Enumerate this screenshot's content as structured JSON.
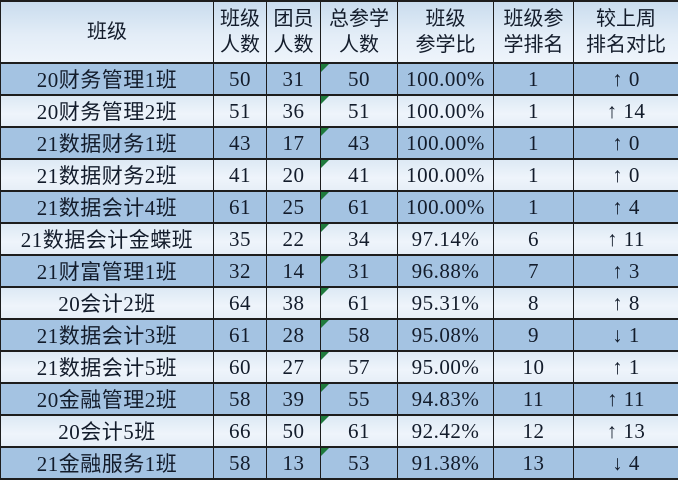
{
  "table": {
    "columns": [
      {
        "label": "班级"
      },
      {
        "label": "班级\n人数"
      },
      {
        "label": "团员\n人数"
      },
      {
        "label": "总参学\n人数"
      },
      {
        "label": "班级\n参学比"
      },
      {
        "label": "班级参\n学排名"
      },
      {
        "label": "较上周\n排名对比"
      }
    ],
    "fields": [
      "name",
      "size",
      "members",
      "attended",
      "ratio",
      "rank",
      "trend"
    ],
    "rows": [
      {
        "name": "20财务管理1班",
        "size": "50",
        "members": "31",
        "attended": "50",
        "ratio": "100.00%",
        "rank": "1",
        "trend": "↑ 0",
        "trend_dir": "up"
      },
      {
        "name": "20财务管理2班",
        "size": "51",
        "members": "36",
        "attended": "51",
        "ratio": "100.00%",
        "rank": "1",
        "trend": "↑ 14",
        "trend_dir": "up"
      },
      {
        "name": "21数据财务1班",
        "size": "43",
        "members": "17",
        "attended": "43",
        "ratio": "100.00%",
        "rank": "1",
        "trend": "↑ 0",
        "trend_dir": "up"
      },
      {
        "name": "21数据财务2班",
        "size": "41",
        "members": "20",
        "attended": "41",
        "ratio": "100.00%",
        "rank": "1",
        "trend": "↑ 0",
        "trend_dir": "up"
      },
      {
        "name": "21数据会计4班",
        "size": "61",
        "members": "25",
        "attended": "61",
        "ratio": "100.00%",
        "rank": "1",
        "trend": "↑ 4",
        "trend_dir": "up"
      },
      {
        "name": "21数据会计金蝶班",
        "size": "35",
        "members": "22",
        "attended": "34",
        "ratio": "97.14%",
        "rank": "6",
        "trend": "↑ 11",
        "trend_dir": "up"
      },
      {
        "name": "21财富管理1班",
        "size": "32",
        "members": "14",
        "attended": "31",
        "ratio": "96.88%",
        "rank": "7",
        "trend": "↑ 3",
        "trend_dir": "up"
      },
      {
        "name": "20会计2班",
        "size": "64",
        "members": "38",
        "attended": "61",
        "ratio": "95.31%",
        "rank": "8",
        "trend": "↑ 8",
        "trend_dir": "up"
      },
      {
        "name": "21数据会计3班",
        "size": "61",
        "members": "28",
        "attended": "58",
        "ratio": "95.08%",
        "rank": "9",
        "trend": "↓ 1",
        "trend_dir": "down"
      },
      {
        "name": "21数据会计5班",
        "size": "60",
        "members": "27",
        "attended": "57",
        "ratio": "95.00%",
        "rank": "10",
        "trend": "↑ 1",
        "trend_dir": "up"
      },
      {
        "name": "20金融管理2班",
        "size": "58",
        "members": "39",
        "attended": "55",
        "ratio": "94.83%",
        "rank": "11",
        "trend": "↑ 11",
        "trend_dir": "up"
      },
      {
        "name": "20会计5班",
        "size": "66",
        "members": "50",
        "attended": "61",
        "ratio": "92.42%",
        "rank": "12",
        "trend": "↑ 13",
        "trend_dir": "up"
      },
      {
        "name": "21金融服务1班",
        "size": "58",
        "members": "13",
        "attended": "53",
        "ratio": "91.38%",
        "rank": "13",
        "trend": "↓ 4",
        "trend_dir": "down"
      }
    ]
  },
  "icons": {
    "error_flag": "excel-green-corner-triangle",
    "trend_up_arrow": "↑",
    "trend_down_arrow": "↓"
  },
  "colors": {
    "row_dark": "#a4c3e2",
    "row_light": "#e8f0f8",
    "header_top": "#c9dcee",
    "header_bottom": "#eef4fb",
    "border": "#1d1d1d",
    "text": "#131c2b",
    "error_flag_green": "#1f7a3d"
  }
}
